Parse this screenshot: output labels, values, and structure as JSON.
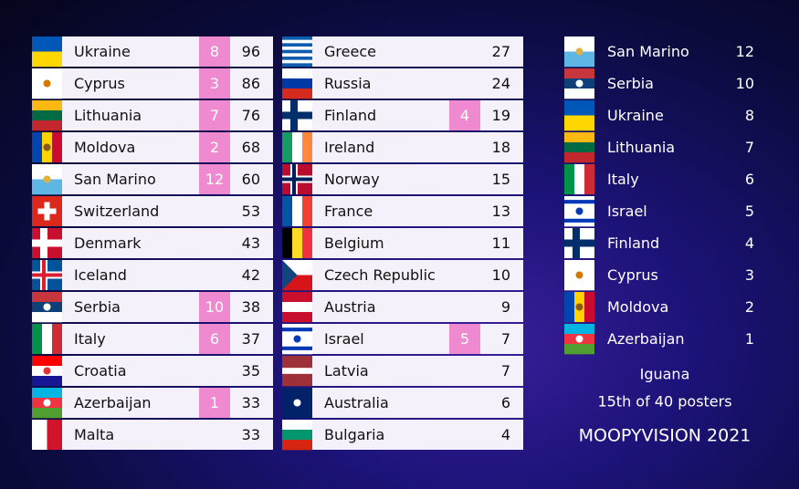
{
  "left": {
    "rows": [
      {
        "country": "Ukraine",
        "points": 8,
        "total": 96
      },
      {
        "country": "Cyprus",
        "points": 3,
        "total": 86
      },
      {
        "country": "Lithuania",
        "points": 7,
        "total": 76
      },
      {
        "country": "Moldova",
        "points": 2,
        "total": 68
      },
      {
        "country": "San Marino",
        "points": 12,
        "total": 60
      },
      {
        "country": "Switzerland",
        "total": 53
      },
      {
        "country": "Denmark",
        "total": 43
      },
      {
        "country": "Iceland",
        "total": 42
      },
      {
        "country": "Serbia",
        "points": 10,
        "total": 38
      },
      {
        "country": "Italy",
        "points": 6,
        "total": 37
      },
      {
        "country": "Croatia",
        "total": 35
      },
      {
        "country": "Azerbaijan",
        "points": 1,
        "total": 33
      },
      {
        "country": "Malta",
        "total": 33
      }
    ]
  },
  "middle": {
    "rows": [
      {
        "country": "Greece",
        "total": 27
      },
      {
        "country": "Russia",
        "total": 24
      },
      {
        "country": "Finland",
        "points": 4,
        "total": 19
      },
      {
        "country": "Ireland",
        "total": 18
      },
      {
        "country": "Norway",
        "total": 15
      },
      {
        "country": "France",
        "total": 13
      },
      {
        "country": "Belgium",
        "total": 11
      },
      {
        "country": "Czech Republic",
        "total": 10
      },
      {
        "country": "Austria",
        "total": 9
      },
      {
        "country": "Israel",
        "points": 5,
        "total": 7
      },
      {
        "country": "Latvia",
        "total": 7
      },
      {
        "country": "Australia",
        "total": 6
      },
      {
        "country": "Bulgaria",
        "total": 4
      }
    ]
  },
  "votes": {
    "rows": [
      {
        "country": "San Marino",
        "points": 12
      },
      {
        "country": "Serbia",
        "points": 10
      },
      {
        "country": "Ukraine",
        "points": 8
      },
      {
        "country": "Lithuania",
        "points": 7
      },
      {
        "country": "Italy",
        "points": 6
      },
      {
        "country": "Israel",
        "points": 5
      },
      {
        "country": "Finland",
        "points": 4
      },
      {
        "country": "Cyprus",
        "points": 3
      },
      {
        "country": "Moldova",
        "points": 2
      },
      {
        "country": "Azerbaijan",
        "points": 1
      }
    ]
  },
  "footer": {
    "voter": "Iguana",
    "rank": "15th of 40 posters",
    "event": "MOOPYVISION 2021"
  }
}
